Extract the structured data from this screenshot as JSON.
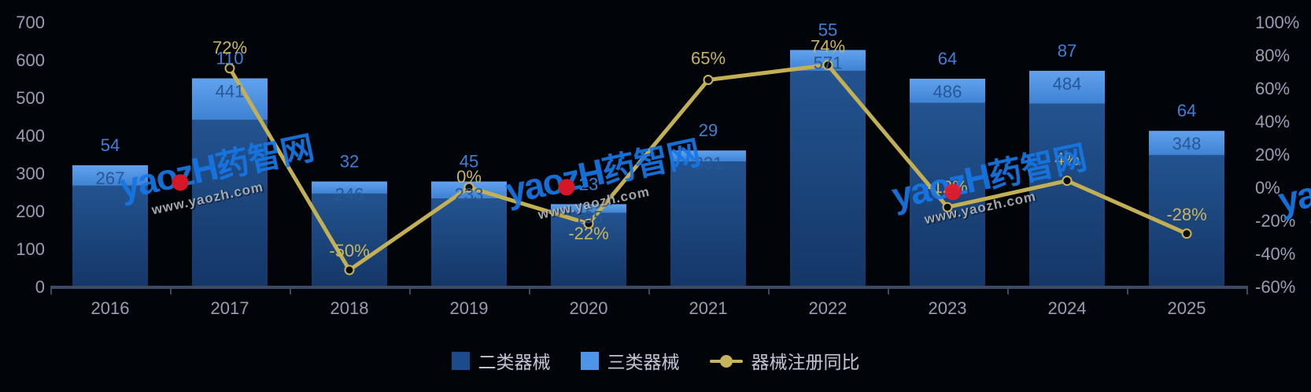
{
  "chart_data": {
    "type": "bar",
    "subtype": "stacked-bars-with-line",
    "title": "",
    "categories": [
      "2016",
      "2017",
      "2018",
      "2019",
      "2020",
      "2021",
      "2022",
      "2023",
      "2024",
      "2025"
    ],
    "series": [
      {
        "name": "二类器械",
        "type": "bar",
        "stack": true,
        "color": "#1b4b8d",
        "values": [
          267,
          441,
          246,
          233,
          195,
          331,
          571,
          486,
          484,
          348
        ]
      },
      {
        "name": "三类器械",
        "type": "bar",
        "stack": true,
        "color": "#4e95e9",
        "values": [
          54,
          110,
          32,
          45,
          23,
          29,
          55,
          64,
          87,
          64
        ]
      },
      {
        "name": "器械注册同比",
        "type": "line",
        "axis": "right",
        "color": "#c8b45c",
        "values": [
          null,
          72,
          -50,
          0,
          -22,
          65,
          74,
          -12,
          4,
          -28
        ],
        "labels": [
          "",
          "72%",
          "-50%",
          "0%",
          "-22%",
          "65%",
          "74%",
          "-12%",
          "4%",
          "-28%"
        ],
        "label_dy": [
          0,
          -26,
          -24,
          -13,
          13,
          -27,
          -23,
          -25,
          -27,
          -24
        ]
      }
    ],
    "left_axis": {
      "min": 0,
      "max": 700,
      "step": 100,
      "ticks": [
        "0",
        "100",
        "200",
        "300",
        "400",
        "500",
        "600",
        "700"
      ]
    },
    "right_axis": {
      "min": -60,
      "max": 100,
      "step": 20,
      "ticks": [
        "-60%",
        "-40%",
        "-20%",
        "0%",
        "20%",
        "40%",
        "60%",
        "80%",
        "100%"
      ]
    },
    "legend_position": "bottom",
    "grid": false,
    "background": "#010409"
  },
  "colors": {
    "bar_dark_top": "#235390",
    "bar_dark_bottom": "#143767",
    "bar_light_top": "#61a2ed",
    "bar_light_bottom": "#3e82d3",
    "value_label_light_series": "#3f80d8",
    "value_label_dark_series": "#265798",
    "pct_label": "#c9b55b",
    "line": "#c3b055",
    "marker_fill": "#0c0c0c",
    "marker_stroke": "#c8b45c",
    "axis_text": "#989fb4",
    "axis_line": "#3d4a66",
    "legend_text": "#c2c6d4"
  },
  "watermark": {
    "latin": "yaozH",
    "cjk": "药智网",
    "url": "www.yaozh.com"
  }
}
